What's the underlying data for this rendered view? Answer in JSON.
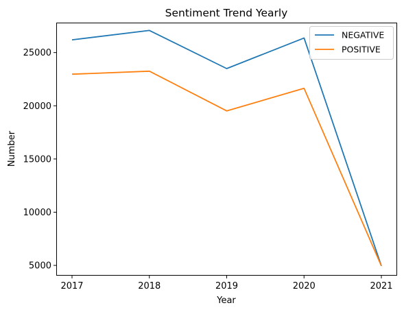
{
  "chart_data": {
    "type": "line",
    "title": "Sentiment Trend Yearly",
    "xlabel": "Year",
    "ylabel": "Number",
    "x": [
      "2017",
      "2018",
      "2019",
      "2020",
      "2021"
    ],
    "ylim": [
      4100,
      27750
    ],
    "yticks": [
      5000,
      10000,
      15000,
      20000,
      25000
    ],
    "ytick_labels": [
      "5000",
      "10000",
      "15000",
      "20000",
      "25000"
    ],
    "grid": false,
    "legend_position": "top-right",
    "series": [
      {
        "name": "NEGATIVE",
        "color": "#1f77b4",
        "values": [
          26200,
          27080,
          23500,
          26370,
          4950
        ]
      },
      {
        "name": "POSITIVE",
        "color": "#ff7f0e",
        "values": [
          22970,
          23250,
          19520,
          21640,
          4950
        ]
      }
    ]
  }
}
